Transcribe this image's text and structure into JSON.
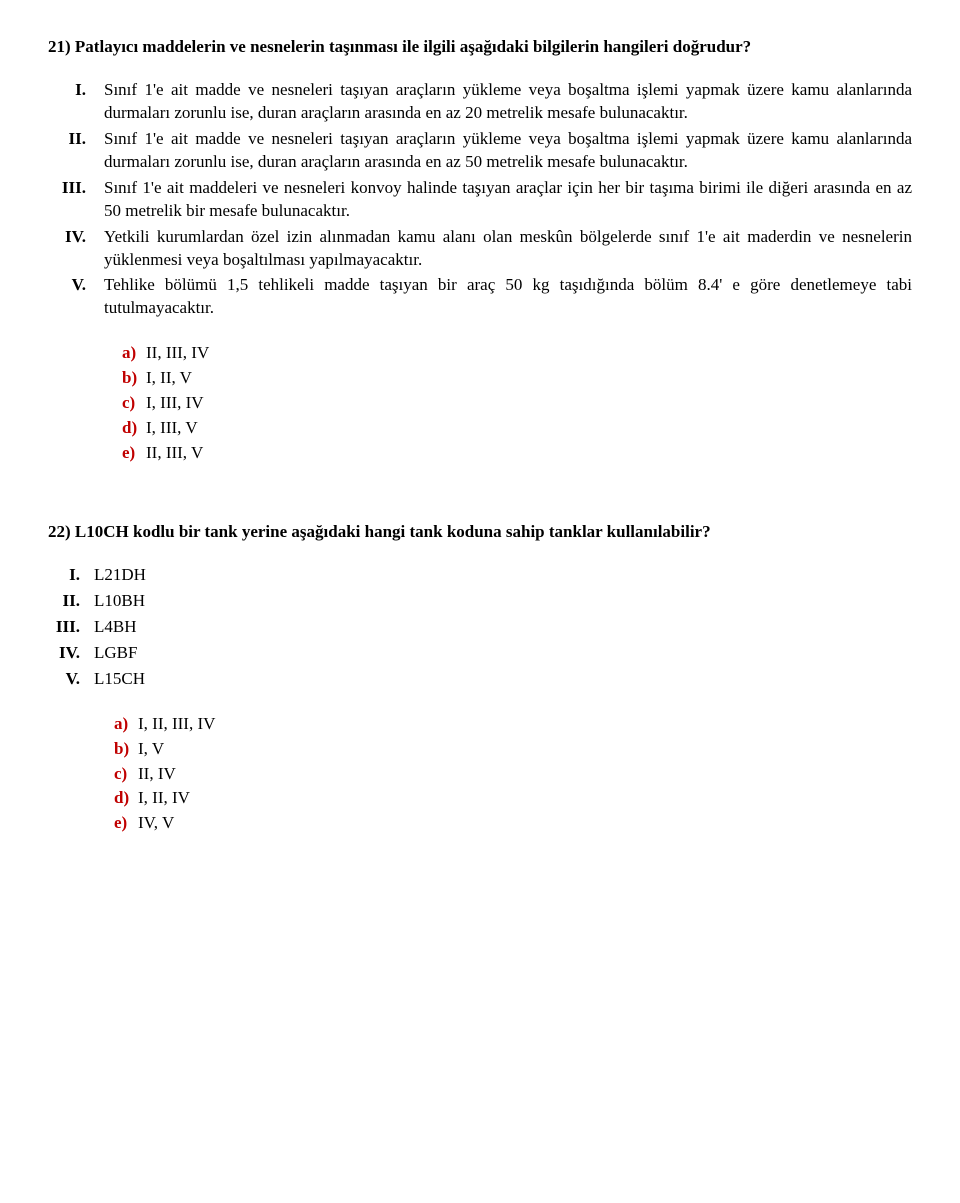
{
  "q21": {
    "number": "21)",
    "prompt": "Patlayıcı maddelerin ve nesnelerin taşınması ile ilgili aşağıdaki bilgilerin hangileri doğrudur?",
    "items": [
      {
        "label": "I.",
        "text": "Sınıf 1'e ait madde ve nesneleri taşıyan araçların yükleme veya boşaltma işlemi yapmak üzere kamu alanlarında durmaları zorunlu ise, duran araçların arasında en az 20 metrelik mesafe bulunacaktır."
      },
      {
        "label": "II.",
        "text": "Sınıf 1'e ait madde ve nesneleri taşıyan araçların yükleme veya boşaltma işlemi yapmak üzere kamu alanlarında durmaları zorunlu ise, duran araçların arasında en az 50 metrelik mesafe bulunacaktır."
      },
      {
        "label": "III.",
        "text": "Sınıf 1'e ait maddeleri ve nesneleri konvoy halinde taşıyan araçlar için her bir taşıma birimi ile diğeri arasında en az 50 metrelik bir mesafe bulunacaktır."
      },
      {
        "label": "IV.",
        "text": "Yetkili kurumlardan özel izin alınmadan kamu alanı olan meskûn bölgelerde sınıf 1'e ait maderdin ve nesnelerin yüklenmesi veya boşaltılması yapılmayacaktır."
      },
      {
        "label": "V.",
        "text": "Tehlike bölümü 1,5 tehlikeli madde taşıyan bir araç 50 kg taşıdığında bölüm 8.4' e göre denetlemeye tabi tutulmayacaktır."
      }
    ],
    "options": [
      {
        "label": "a)",
        "text": "II, III, IV"
      },
      {
        "label": "b)",
        "text": "I, II, V"
      },
      {
        "label": "c)",
        "text": "I, III, IV"
      },
      {
        "label": "d)",
        "text": "I, III, V"
      },
      {
        "label": "e)",
        "text": "II, III, V"
      }
    ]
  },
  "q22": {
    "number": "22)",
    "prompt": "L10CH kodlu bir tank yerine aşağıdaki hangi tank koduna sahip tanklar kullanılabilir?",
    "items": [
      {
        "label": "I.",
        "text": "L21DH"
      },
      {
        "label": "II.",
        "text": "L10BH"
      },
      {
        "label": "III.",
        "text": "L4BH"
      },
      {
        "label": "IV.",
        "text": "LGBF"
      },
      {
        "label": "V.",
        "text": "L15CH"
      }
    ],
    "options": [
      {
        "label": "a)",
        "text": "I, II, III, IV"
      },
      {
        "label": "b)",
        "text": "I, V"
      },
      {
        "label": "c)",
        "text": "II, IV"
      },
      {
        "label": "d)",
        "text": "I, II, IV"
      },
      {
        "label": "e)",
        "text": "IV, V"
      }
    ]
  }
}
